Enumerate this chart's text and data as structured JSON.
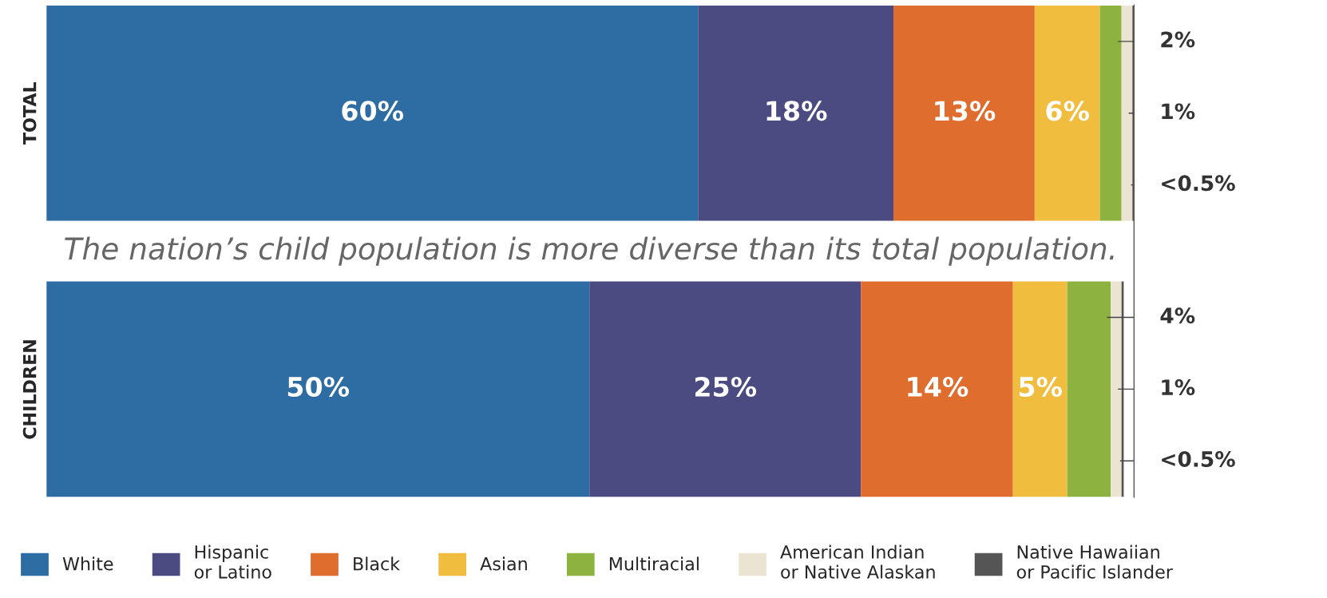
{
  "chart_data": {
    "type": "bar",
    "orientation": "horizontal",
    "stacked": true,
    "categories": [
      "TOTAL",
      "CHILDREN"
    ],
    "series": [
      {
        "name": "White",
        "color": "#2e6da4",
        "values": [
          60,
          50
        ],
        "value_labels": [
          "60%",
          "50%"
        ]
      },
      {
        "name": "Hispanic\nor Latino",
        "color": "#4b4b82",
        "values": [
          18,
          25
        ],
        "value_labels": [
          "18%",
          "25%"
        ]
      },
      {
        "name": "Black",
        "color": "#df6d2e",
        "values": [
          13,
          14
        ],
        "value_labels": [
          "13%",
          "14%"
        ]
      },
      {
        "name": "Asian",
        "color": "#f0bd3f",
        "values": [
          6,
          5
        ],
        "value_labels": [
          "6%",
          "5%"
        ]
      },
      {
        "name": "Multiracial",
        "color": "#8db23f",
        "values": [
          2,
          4
        ],
        "value_labels": [
          "2%",
          "4%"
        ]
      },
      {
        "name": "American Indian\nor Native Alaskan",
        "color": "#ebe4d3",
        "values": [
          1,
          1
        ],
        "value_labels": [
          "1%",
          "1%"
        ]
      },
      {
        "name": "Native Hawaiian\nor Pacific Islander",
        "color": "#555555",
        "values": [
          0.2,
          0.2
        ],
        "value_labels": [
          "<0.5%",
          "<0.5%"
        ]
      }
    ],
    "annotations": [
      "The nation’s child population is more diverse than its total population."
    ],
    "legend": "bottom"
  }
}
